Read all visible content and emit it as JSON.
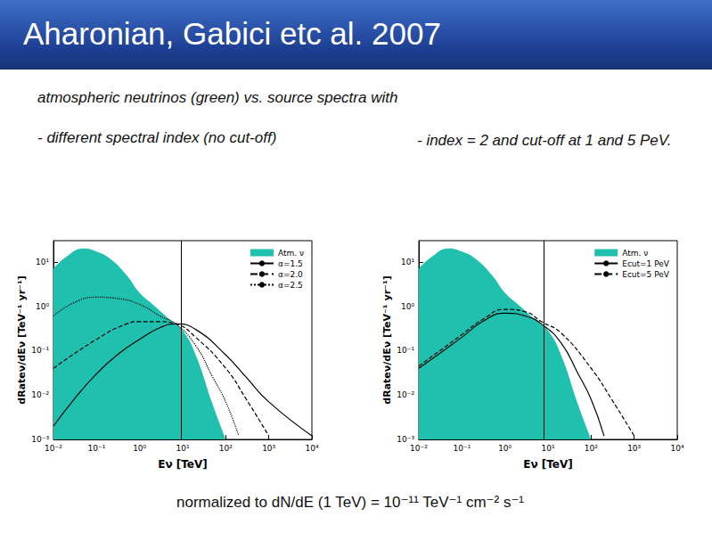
{
  "title": "Aharonian, Gabici etc al. 2007",
  "subtitle": "atmospheric neutrinos (green) vs. source spectra with",
  "captions": [
    "- different spectral index (no cut-off)",
    "-  index = 2 and cut-off at 1 and 5 PeV."
  ],
  "footnote": "normalized to dN/dE (1 TeV) = 10⁻¹¹ TeV⁻¹ cm⁻² s⁻¹",
  "chart_data": [
    {
      "type": "line",
      "log": true,
      "grid": false,
      "legend": "top-right",
      "x_label": "Eν [TeV]",
      "y_label": "dRateν/dEν [TeV⁻¹ yr⁻¹]",
      "xlim": [
        0.01,
        10000
      ],
      "xticks": [
        {
          "value": 0.01,
          "label": "10⁻²"
        },
        {
          "value": 0.1,
          "label": "10⁻¹"
        },
        {
          "value": 1,
          "label": "10⁰"
        },
        {
          "value": 10,
          "label": "10¹"
        },
        {
          "value": 100,
          "label": "10²"
        },
        {
          "value": 1000,
          "label": "10³"
        },
        {
          "value": 10000,
          "label": "10⁴"
        }
      ],
      "ylim": [
        0.001,
        30
      ],
      "yticks": [
        {
          "value": 0.001,
          "label": "10⁻³"
        },
        {
          "value": 0.01,
          "label": "10⁻²"
        },
        {
          "value": 0.1,
          "label": "10⁻¹"
        },
        {
          "value": 1,
          "label": "10⁰"
        },
        {
          "value": 10,
          "label": "10¹"
        }
      ],
      "vline": 9,
      "series": [
        {
          "name": "Atm. ν",
          "type": "area",
          "color": "#20c0ae",
          "x": [
            0.01,
            0.02,
            0.05,
            0.1,
            0.2,
            0.5,
            1,
            2,
            5,
            10,
            20,
            50,
            100
          ],
          "values": [
            7,
            13,
            20,
            17,
            12,
            5,
            2,
            1.1,
            0.5,
            0.28,
            0.08,
            0.006,
            0.001
          ]
        },
        {
          "name": "α=1.5",
          "type": "line",
          "color": "#000000",
          "line_style": "solid",
          "x": [
            0.01,
            0.03,
            0.1,
            0.3,
            1,
            3,
            7,
            20,
            100,
            300,
            1000,
            10000
          ],
          "values": [
            0.002,
            0.008,
            0.03,
            0.08,
            0.18,
            0.33,
            0.4,
            0.3,
            0.08,
            0.025,
            0.007,
            0.0012
          ]
        },
        {
          "name": "α=2.0",
          "type": "line",
          "color": "#000000",
          "line_style": "dashed",
          "x": [
            0.01,
            0.1,
            0.5,
            1,
            3,
            7,
            20,
            100,
            300,
            1000
          ],
          "values": [
            0.04,
            0.18,
            0.4,
            0.45,
            0.45,
            0.4,
            0.2,
            0.04,
            0.008,
            0.0012
          ]
        },
        {
          "name": "α=2.5",
          "type": "line",
          "color": "#000000",
          "line_style": "dotted",
          "x": [
            0.01,
            0.03,
            0.1,
            0.3,
            1,
            3,
            7,
            20,
            50,
            100,
            200
          ],
          "values": [
            0.6,
            1.2,
            1.6,
            1.5,
            1.1,
            0.6,
            0.4,
            0.13,
            0.025,
            0.007,
            0.0012
          ]
        }
      ]
    },
    {
      "type": "line",
      "log": true,
      "grid": false,
      "legend": "top-right",
      "x_label": "Eν [TeV]",
      "y_label": "dRateν/dEν [TeV⁻¹ yr⁻¹]",
      "xlim": [
        0.01,
        10000
      ],
      "xticks": [
        {
          "value": 0.01,
          "label": "10⁻²"
        },
        {
          "value": 0.1,
          "label": "10⁻¹"
        },
        {
          "value": 1,
          "label": "10⁰"
        },
        {
          "value": 10,
          "label": "10¹"
        },
        {
          "value": 100,
          "label": "10²"
        },
        {
          "value": 1000,
          "label": "10³"
        },
        {
          "value": 10000,
          "label": "10⁴"
        }
      ],
      "ylim": [
        0.001,
        30
      ],
      "yticks": [
        {
          "value": 0.001,
          "label": "10⁻³"
        },
        {
          "value": 0.01,
          "label": "10⁻²"
        },
        {
          "value": 0.1,
          "label": "10⁻¹"
        },
        {
          "value": 1,
          "label": "10⁰"
        },
        {
          "value": 10,
          "label": "10¹"
        }
      ],
      "vline": 8,
      "series": [
        {
          "name": "Atm. ν",
          "type": "area",
          "color": "#20c0ae",
          "x": [
            0.01,
            0.02,
            0.05,
            0.1,
            0.2,
            0.5,
            1,
            2,
            5,
            10,
            20,
            50,
            100
          ],
          "values": [
            7,
            13,
            20,
            17,
            12,
            5,
            2,
            1.1,
            0.5,
            0.28,
            0.08,
            0.006,
            0.001
          ]
        },
        {
          "name": "Ecut=1 PeV",
          "type": "line",
          "color": "#000000",
          "line_style": "solid",
          "x": [
            0.01,
            0.1,
            0.3,
            1,
            3,
            7,
            20,
            50,
            100,
            200
          ],
          "values": [
            0.04,
            0.2,
            0.45,
            0.7,
            0.6,
            0.4,
            0.15,
            0.03,
            0.008,
            0.0012
          ]
        },
        {
          "name": "Ecut=5 PeV",
          "type": "line",
          "color": "#000000",
          "line_style": "dashed",
          "x": [
            0.01,
            0.1,
            0.3,
            1,
            3,
            7,
            20,
            100,
            300,
            1000
          ],
          "values": [
            0.045,
            0.23,
            0.5,
            0.85,
            0.75,
            0.45,
            0.25,
            0.04,
            0.008,
            0.0012
          ]
        }
      ]
    }
  ]
}
